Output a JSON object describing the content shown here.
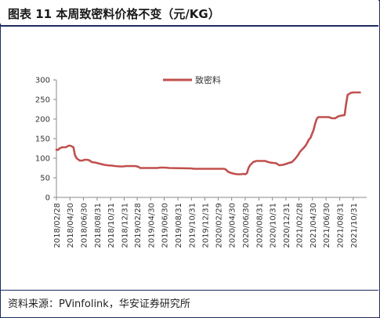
{
  "header": {
    "title": "图表 11 本周致密料价格不变（元/KG）"
  },
  "footer": {
    "source": "资料来源：PVinfolink，华安证券研究所"
  },
  "colors": {
    "series": "#c0504d",
    "frame": "#1c2b5e",
    "axis": "#888888"
  },
  "chart_data": {
    "type": "line",
    "title": "",
    "xlabel": "",
    "ylabel": "",
    "ylim": [
      0,
      300
    ],
    "yticks": [
      0,
      50,
      100,
      150,
      200,
      250,
      300
    ],
    "grid": false,
    "legend": "top-center",
    "xlim": [
      "2018-02-28",
      "2021-12-31"
    ],
    "xtick_labels": [
      "2018/02/28",
      "2018/04/30",
      "2018/06/30",
      "2018/08/31",
      "2018/10/31",
      "2018/12/31",
      "2019/02/28",
      "2019/04/30",
      "2019/06/30",
      "2019/08/31",
      "2019/10/31",
      "2019/12/31",
      "2020/02/29",
      "2020/04/30",
      "2020/06/30",
      "2020/08/31",
      "2020/10/31",
      "2020/12/31",
      "2021/02/28",
      "2021/04/30",
      "2021/06/30",
      "2021/08/31",
      "2021/10/31"
    ],
    "series": [
      {
        "name": "致密料",
        "color": "#c0504d",
        "points": [
          [
            "2018-02-28",
            122
          ],
          [
            "2018-03-07",
            121
          ],
          [
            "2018-03-14",
            125
          ],
          [
            "2018-03-21",
            127
          ],
          [
            "2018-03-28",
            128
          ],
          [
            "2018-04-11",
            128
          ],
          [
            "2018-04-18",
            130
          ],
          [
            "2018-04-25",
            132
          ],
          [
            "2018-05-02",
            132
          ],
          [
            "2018-05-09",
            130
          ],
          [
            "2018-05-16",
            128
          ],
          [
            "2018-05-23",
            108
          ],
          [
            "2018-05-30",
            100
          ],
          [
            "2018-06-06",
            97
          ],
          [
            "2018-06-13",
            94
          ],
          [
            "2018-06-27",
            94
          ],
          [
            "2018-07-04",
            96
          ],
          [
            "2018-07-18",
            96
          ],
          [
            "2018-07-25",
            95
          ],
          [
            "2018-08-08",
            90
          ],
          [
            "2018-08-22",
            89
          ],
          [
            "2018-09-05",
            87
          ],
          [
            "2018-09-19",
            85
          ],
          [
            "2018-10-03",
            83
          ],
          [
            "2018-10-17",
            82
          ],
          [
            "2018-11-07",
            81
          ],
          [
            "2018-11-21",
            80
          ],
          [
            "2018-12-12",
            79
          ],
          [
            "2018-12-26",
            79
          ],
          [
            "2019-01-09",
            80
          ],
          [
            "2019-01-23",
            80
          ],
          [
            "2019-02-06",
            80
          ],
          [
            "2019-02-20",
            80
          ],
          [
            "2019-03-06",
            78
          ],
          [
            "2019-03-13",
            75
          ],
          [
            "2019-03-27",
            75
          ],
          [
            "2019-05-29",
            75
          ],
          [
            "2019-06-12",
            76
          ],
          [
            "2019-07-03",
            76
          ],
          [
            "2019-07-24",
            75
          ],
          [
            "2019-10-30",
            74
          ],
          [
            "2019-11-13",
            73
          ],
          [
            "2020-03-25",
            73
          ],
          [
            "2020-04-01",
            72
          ],
          [
            "2020-04-15",
            65
          ],
          [
            "2020-04-29",
            62
          ],
          [
            "2020-05-13",
            60
          ],
          [
            "2020-05-27",
            59
          ],
          [
            "2020-06-10",
            59
          ],
          [
            "2020-06-24",
            60
          ],
          [
            "2020-07-01",
            59
          ],
          [
            "2020-07-08",
            62
          ],
          [
            "2020-07-15",
            75
          ],
          [
            "2020-07-22",
            82
          ],
          [
            "2020-07-29",
            86
          ],
          [
            "2020-08-05",
            90
          ],
          [
            "2020-08-19",
            93
          ],
          [
            "2020-09-02",
            93
          ],
          [
            "2020-09-30",
            93
          ],
          [
            "2020-10-07",
            91
          ],
          [
            "2020-10-21",
            89
          ],
          [
            "2020-11-04",
            88
          ],
          [
            "2020-11-18",
            87
          ],
          [
            "2020-11-25",
            84
          ],
          [
            "2020-12-02",
            82
          ],
          [
            "2020-12-16",
            83
          ],
          [
            "2020-12-30",
            85
          ],
          [
            "2021-01-13",
            88
          ],
          [
            "2021-01-27",
            90
          ],
          [
            "2021-02-10",
            98
          ],
          [
            "2021-02-24",
            108
          ],
          [
            "2021-03-03",
            115
          ],
          [
            "2021-03-10",
            120
          ],
          [
            "2021-03-17",
            124
          ],
          [
            "2021-03-24",
            128
          ],
          [
            "2021-03-31",
            133
          ],
          [
            "2021-04-07",
            140
          ],
          [
            "2021-04-14",
            148
          ],
          [
            "2021-04-21",
            152
          ],
          [
            "2021-04-28",
            162
          ],
          [
            "2021-05-05",
            172
          ],
          [
            "2021-05-12",
            188
          ],
          [
            "2021-05-19",
            200
          ],
          [
            "2021-05-26",
            205
          ],
          [
            "2021-06-02",
            205
          ],
          [
            "2021-07-14",
            205
          ],
          [
            "2021-07-21",
            203
          ],
          [
            "2021-07-28",
            202
          ],
          [
            "2021-08-11",
            202
          ],
          [
            "2021-08-25",
            207
          ],
          [
            "2021-09-08",
            209
          ],
          [
            "2021-09-22",
            210
          ],
          [
            "2021-09-29",
            238
          ],
          [
            "2021-10-06",
            262
          ],
          [
            "2021-10-13",
            264
          ],
          [
            "2021-10-20",
            267
          ],
          [
            "2021-11-03",
            268
          ],
          [
            "2021-12-01",
            268
          ]
        ]
      }
    ]
  }
}
